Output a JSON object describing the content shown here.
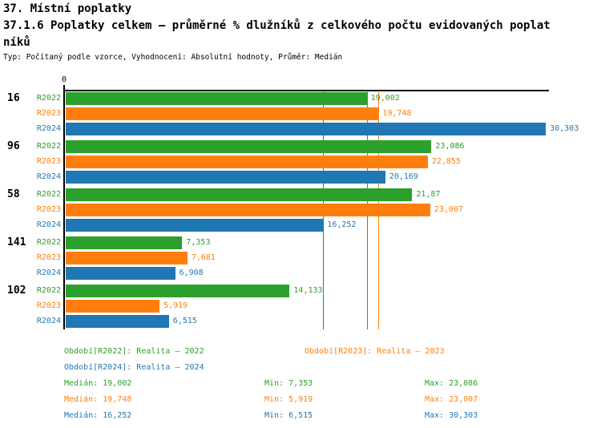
{
  "header": {
    "line1": "37. Místní poplatky",
    "line2": "37.1.6 Poplatky celkem – průměrné % dlužníků z celkového počtu evidovaných poplat",
    "line3": "níků",
    "meta": "Typ: Počítaný podle vzorce, Vyhodnocení: Absolutní hodnoty, Průměr: Medián"
  },
  "chart_data": {
    "type": "bar",
    "orientation": "horizontal",
    "title": "37.1.6 Poplatky celkem – průměrné % dlužníků z celkového počtu evidovaných poplatníků",
    "x_axis": {
      "min": 0,
      "max": 30.5,
      "origin_tick_label": "0",
      "grid": false
    },
    "series": [
      "R2022",
      "R2023",
      "R2024"
    ],
    "series_colors": {
      "R2022": "#2ca02c",
      "R2023": "#ff7f0e",
      "R2024": "#1f77b4"
    },
    "categories": [
      "16",
      "96",
      "58",
      "141",
      "102"
    ],
    "groups": [
      {
        "label": "16",
        "values": [
          19.002,
          19.748,
          30.303
        ],
        "displays": [
          "19,002",
          "19,748",
          "30,303"
        ]
      },
      {
        "label": "96",
        "values": [
          23.086,
          22.855,
          20.169
        ],
        "displays": [
          "23,086",
          "22,855",
          "20,169"
        ]
      },
      {
        "label": "58",
        "values": [
          21.87,
          23.007,
          16.252
        ],
        "displays": [
          "21,87",
          "23,007",
          "16,252"
        ]
      },
      {
        "label": "141",
        "values": [
          7.353,
          7.681,
          6.908
        ],
        "displays": [
          "7,353",
          "7,681",
          "6,908"
        ]
      },
      {
        "label": "102",
        "values": [
          14.133,
          5.919,
          6.515
        ],
        "displays": [
          "14,133",
          "5,919",
          "6,515"
        ]
      }
    ],
    "median_lines": [
      {
        "series": "R2022",
        "value": 19.002
      },
      {
        "series": "R2023",
        "value": 19.748
      },
      {
        "series": "R2024",
        "value": 16.252
      }
    ]
  },
  "legend": {
    "items": [
      {
        "series": "R2022",
        "label": "Období[R2022]: Realita – 2022"
      },
      {
        "series": "R2023",
        "label": "Období[R2023]: Realita – 2023"
      },
      {
        "series": "R2024",
        "label": "Období[R2024]: Realita – 2024"
      }
    ]
  },
  "stats": {
    "rows": [
      {
        "series": "R2022",
        "median": "Medián: 19,002",
        "min": "Min: 7,353",
        "max": "Max: 23,086"
      },
      {
        "series": "R2023",
        "median": "Medián: 19,748",
        "min": "Min: 5,919",
        "max": "Max: 23,007"
      },
      {
        "series": "R2024",
        "median": "Medián: 16,252",
        "min": "Min: 6,515",
        "max": "Max: 30,303"
      }
    ]
  }
}
